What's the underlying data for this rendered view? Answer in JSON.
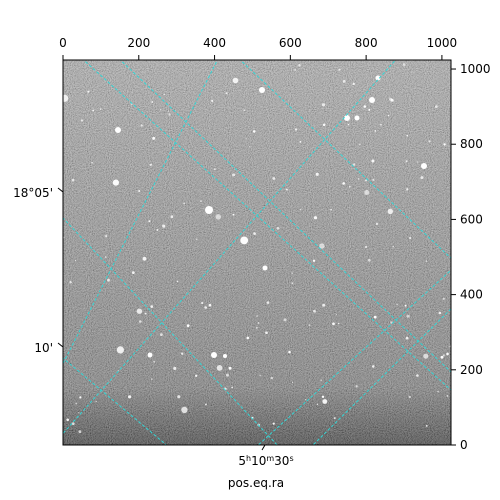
{
  "plot": {
    "xlabel": "pos.eq.ra",
    "ra_label": "5h10m30s",
    "dec_labels": [
      "18°05'",
      "10'"
    ],
    "top_ticks": [
      "0",
      "200",
      "400",
      "600",
      "800",
      "1000"
    ],
    "top_tick_values": [
      0,
      200,
      400,
      600,
      800,
      1000
    ],
    "right_ticks": [
      "0",
      "200",
      "400",
      "600",
      "800",
      "1000"
    ],
    "right_tick_values": [
      0,
      200,
      400,
      600,
      800,
      1000
    ],
    "pixel_range": [
      0,
      1024
    ],
    "grid_color": "#33d6d6",
    "image": {
      "type": "grayscale star field",
      "background": "#808080"
    }
  }
}
